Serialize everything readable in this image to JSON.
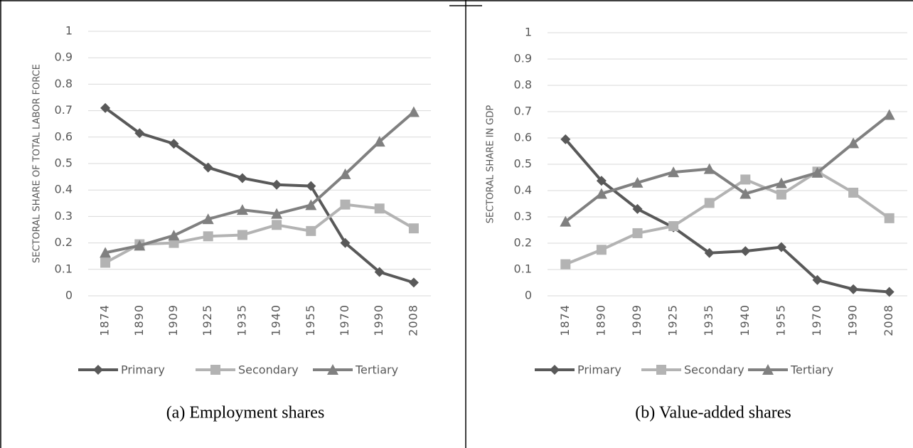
{
  "chart_data": [
    {
      "type": "line",
      "title": "(a) Employment shares",
      "y_label": "SECTORAL SHARE OF TOTAL LABOR FORCE",
      "categories": [
        "1874",
        "1890",
        "1909",
        "1925",
        "1935",
        "1940",
        "1955",
        "1970",
        "1990",
        "2008"
      ],
      "series": [
        {
          "name": "Primary",
          "color": "#595959",
          "marker": "diamond",
          "values": [
            0.71,
            0.615,
            0.575,
            0.485,
            0.445,
            0.42,
            0.415,
            0.2,
            0.09,
            0.05
          ]
        },
        {
          "name": "Secondary",
          "color": "#b3b3b3",
          "marker": "square",
          "values": [
            0.125,
            0.195,
            0.2,
            0.225,
            0.23,
            0.268,
            0.245,
            0.345,
            0.33,
            0.255
          ]
        },
        {
          "name": "Tertiary",
          "color": "#808080",
          "marker": "triangle",
          "values": [
            0.163,
            0.19,
            0.228,
            0.29,
            0.325,
            0.31,
            0.343,
            0.46,
            0.583,
            0.695
          ]
        }
      ],
      "ylim": [
        0,
        1
      ],
      "yticks": [
        0,
        0.1,
        0.2,
        0.3,
        0.4,
        0.5,
        0.6,
        0.7,
        0.8,
        0.9,
        1
      ],
      "grid": true,
      "legend": "bottom"
    },
    {
      "type": "line",
      "title": "(b) Value-added shares",
      "y_label": "SECTORAL SHARE IN GDP",
      "categories": [
        "1874",
        "1890",
        "1909",
        "1925",
        "1935",
        "1940",
        "1955",
        "1970",
        "1990",
        "2008"
      ],
      "series": [
        {
          "name": "Primary",
          "color": "#595959",
          "marker": "diamond",
          "values": [
            0.595,
            0.437,
            0.33,
            0.26,
            0.163,
            0.17,
            0.185,
            0.06,
            0.025,
            0.015
          ]
        },
        {
          "name": "Secondary",
          "color": "#b3b3b3",
          "marker": "square",
          "values": [
            0.12,
            0.175,
            0.238,
            0.265,
            0.353,
            0.442,
            0.385,
            0.472,
            0.392,
            0.295
          ]
        },
        {
          "name": "Tertiary",
          "color": "#808080",
          "marker": "triangle",
          "values": [
            0.282,
            0.388,
            0.43,
            0.47,
            0.482,
            0.388,
            0.428,
            0.468,
            0.58,
            0.688
          ]
        }
      ],
      "ylim": [
        0,
        1
      ],
      "yticks": [
        0,
        0.1,
        0.2,
        0.3,
        0.4,
        0.5,
        0.6,
        0.7,
        0.8,
        0.9,
        1
      ],
      "grid": true,
      "legend": "bottom"
    }
  ]
}
